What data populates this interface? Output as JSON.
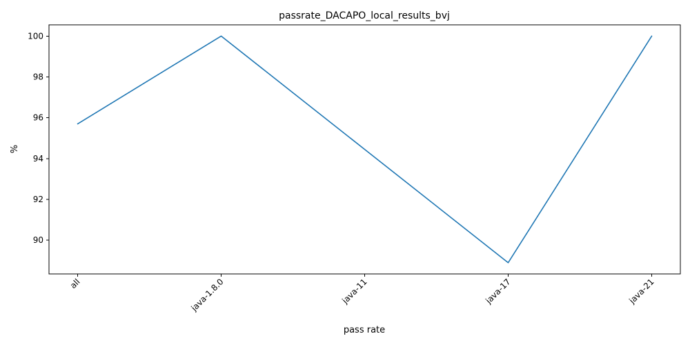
{
  "chart_data": {
    "type": "line",
    "title": "passrate_DACAPO_local_results_bvj",
    "xlabel": "pass rate",
    "ylabel": "%",
    "categories": [
      "all",
      "java-1.8.0",
      "java-11",
      "java-17",
      "java-21"
    ],
    "series": [
      {
        "values": [
          95.7,
          100,
          94.45,
          88.9,
          100
        ]
      }
    ],
    "ylim": [
      88.35,
      100.55
    ],
    "yticks": [
      90,
      92,
      94,
      96,
      98,
      100
    ],
    "xtick_rotation": 45,
    "grid": false,
    "line_color": "#1f77b4"
  }
}
